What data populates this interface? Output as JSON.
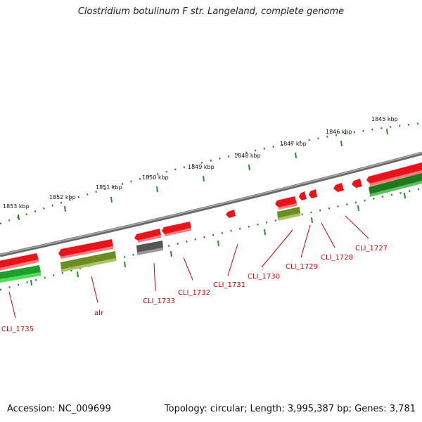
{
  "title": "Clostridium botulinum F str. Langeland, complete genome",
  "accession": "Accession: NC_009699",
  "summary": "Topology: circular; Length: 3,995,387 bp; Genes: 3,781",
  "scale_labels": [
    "1853 kbp",
    "1852 kbp",
    "1851 kbp",
    "1850 kbp",
    "1849 kbp",
    "1848 kbp",
    "1847 kbp",
    "1846 kbp",
    "1845 kbp"
  ],
  "gene_labels": [
    "CLI_1735",
    "alr",
    "CLI_1733",
    "CLI_1732",
    "CLI_1731",
    "CLI_1730",
    "CLI_1729",
    "CLI_1728",
    "CLI_1727"
  ],
  "colors": {
    "forward_cds": "#e8141c",
    "reverse_cds": "#6b8e23",
    "other_gene": "#555555",
    "green_gene": "#1e9e2a",
    "label": "#d40000",
    "ticks": "#2a8a2a",
    "backbone": "#8a8a8a"
  }
}
